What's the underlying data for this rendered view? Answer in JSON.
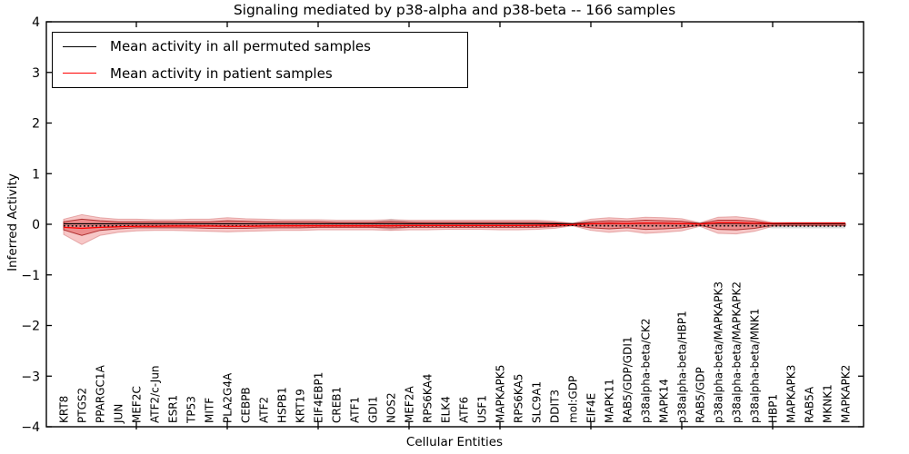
{
  "title": "Signaling mediated by p38-alpha and p38-beta -- 166 samples",
  "legend": {
    "items": [
      {
        "label": "Mean activity in all permuted samples",
        "color": "#000000",
        "style": "solid"
      },
      {
        "label": "Mean activity in patient samples",
        "color": "#ff0000",
        "style": "solid"
      }
    ],
    "position": "upper left"
  },
  "axes": {
    "xlabel": "Cellular Entities",
    "ylabel": "Inferred Activity",
    "ytick_labels": [
      "4",
      "3",
      "2",
      "1",
      "0",
      "−1",
      "−2",
      "−3",
      "−4"
    ]
  },
  "colors": {
    "patient_line": "#ff0000",
    "permuted_line": "#000000",
    "band_outer": "rgba(230,85,85,0.33)",
    "band_inner": "rgba(222,62,62,0.42)",
    "band_inner_edge": "rgba(165,28,28,0.85)",
    "band_permuted": "rgba(130,130,130,0.28)",
    "frame": "#000000"
  },
  "chart_data": {
    "type": "line",
    "title": "Signaling mediated by p38-alpha and p38-beta -- 166 samples",
    "xlabel": "Cellular Entities",
    "ylabel": "Inferred Activity",
    "ylim": [
      -4,
      4
    ],
    "yticks": [
      4,
      3,
      2,
      1,
      0,
      -1,
      -2,
      -3,
      -4
    ],
    "grid": false,
    "legend_position": "upper left",
    "categories": [
      "KRT8",
      "PTGS2",
      "PPARGC1A",
      "JUN",
      "MEF2C",
      "ATF2/c-Jun",
      "ESR1",
      "TP53",
      "MITF",
      "PLA2G4A",
      "CEBPB",
      "ATF2",
      "HSPB1",
      "KRT19",
      "EIF4EBP1",
      "CREB1",
      "ATF1",
      "GDI1",
      "NOS2",
      "MEF2A",
      "RPS6KA4",
      "ELK4",
      "ATF6",
      "USF1",
      "MAPKAPK5",
      "RPS6KA5",
      "SLC9A1",
      "DDIT3",
      "mol:GDP",
      "EIF4E",
      "MAPK11",
      "RAB5/GDP/GDI1",
      "p38alpha-beta/CK2",
      "MAPK14",
      "p38alpha-beta/HBP1",
      "RAB5/GDP",
      "p38alpha-beta/MAPKAPK3",
      "p38alpha-beta/MAPKAPK2",
      "p38alpha-beta/MNK1",
      "HBP1",
      "MAPKAPK3",
      "RAB5A",
      "MKNK1",
      "MAPKAPK2"
    ],
    "series": [
      {
        "name": "Mean activity in all permuted samples",
        "color": "#000000",
        "values": [
          0.01,
          0.01,
          0.01,
          0.01,
          0.01,
          0.01,
          0.01,
          0.01,
          0.01,
          0.01,
          0.01,
          0.01,
          0.01,
          0.01,
          0.01,
          0.01,
          0.01,
          0.01,
          0.01,
          0.01,
          0.01,
          0.01,
          0.01,
          0.01,
          0.01,
          0.01,
          0.01,
          0.01,
          0.01,
          0.015,
          0.02,
          0.015,
          0.02,
          0.02,
          0.015,
          0.01,
          0.02,
          0.02,
          0.015,
          0.01,
          0.01,
          0.01,
          0.01,
          0.01
        ]
      },
      {
        "name": "Mean activity in patient samples",
        "color": "#ff0000",
        "values": [
          -0.06,
          -0.08,
          -0.06,
          -0.05,
          -0.04,
          -0.04,
          -0.035,
          -0.035,
          -0.035,
          -0.04,
          -0.04,
          -0.035,
          -0.03,
          -0.03,
          -0.03,
          -0.03,
          -0.03,
          -0.03,
          -0.03,
          -0.025,
          -0.025,
          -0.025,
          -0.025,
          -0.025,
          -0.025,
          -0.025,
          -0.02,
          -0.015,
          -0.005,
          0.01,
          0.02,
          0.015,
          0.025,
          0.02,
          0.015,
          0.005,
          0.03,
          0.03,
          0.02,
          0.02,
          0.025,
          0.025,
          0.025,
          0.025
        ]
      }
    ],
    "extra_lines": [
      {
        "name": "permuted-dotted",
        "color": "#111111",
        "style": "dotted",
        "values": [
          -0.03,
          -0.035,
          -0.03,
          -0.03,
          -0.03,
          -0.03,
          -0.03,
          -0.03,
          -0.03,
          -0.03,
          -0.03,
          -0.03,
          -0.03,
          -0.03,
          -0.03,
          -0.03,
          -0.03,
          -0.03,
          -0.03,
          -0.03,
          -0.03,
          -0.03,
          -0.03,
          -0.03,
          -0.03,
          -0.03,
          -0.03,
          -0.025,
          -0.02,
          -0.025,
          -0.03,
          -0.03,
          -0.03,
          -0.03,
          -0.03,
          -0.025,
          -0.03,
          -0.03,
          -0.03,
          -0.03,
          -0.035,
          -0.035,
          -0.035,
          -0.035
        ]
      }
    ],
    "bands": [
      {
        "name": "patient-outer",
        "top": [
          0.1,
          0.19,
          0.13,
          0.1,
          0.1,
          0.09,
          0.09,
          0.1,
          0.1,
          0.13,
          0.11,
          0.1,
          0.09,
          0.09,
          0.09,
          0.08,
          0.08,
          0.08,
          0.09,
          0.08,
          0.08,
          0.08,
          0.08,
          0.08,
          0.08,
          0.08,
          0.08,
          0.06,
          0.02,
          0.1,
          0.13,
          0.11,
          0.14,
          0.13,
          0.11,
          0.03,
          0.14,
          0.15,
          0.11,
          0.03,
          0.02,
          0.02,
          0.02,
          0.02
        ],
        "bottom": [
          -0.2,
          -0.4,
          -0.22,
          -0.16,
          -0.13,
          -0.12,
          -0.12,
          -0.13,
          -0.14,
          -0.15,
          -0.14,
          -0.13,
          -0.12,
          -0.12,
          -0.11,
          -0.11,
          -0.11,
          -0.11,
          -0.12,
          -0.11,
          -0.11,
          -0.1,
          -0.1,
          -0.1,
          -0.11,
          -0.11,
          -0.1,
          -0.08,
          -0.03,
          -0.12,
          -0.16,
          -0.13,
          -0.18,
          -0.16,
          -0.13,
          -0.04,
          -0.18,
          -0.19,
          -0.14,
          -0.04,
          -0.03,
          -0.03,
          -0.03,
          -0.03
        ]
      },
      {
        "name": "patient-inner",
        "top": [
          0.05,
          0.1,
          0.07,
          0.05,
          0.05,
          0.05,
          0.05,
          0.05,
          0.05,
          0.07,
          0.06,
          0.05,
          0.05,
          0.05,
          0.05,
          0.04,
          0.04,
          0.04,
          0.05,
          0.04,
          0.04,
          0.04,
          0.04,
          0.04,
          0.04,
          0.04,
          0.04,
          0.03,
          0.01,
          0.05,
          0.07,
          0.06,
          0.08,
          0.07,
          0.06,
          0.015,
          0.08,
          0.08,
          0.06,
          0.015,
          0.01,
          0.01,
          0.01,
          0.01
        ],
        "bottom": [
          -0.11,
          -0.22,
          -0.12,
          -0.09,
          -0.07,
          -0.07,
          -0.07,
          -0.07,
          -0.08,
          -0.08,
          -0.08,
          -0.07,
          -0.07,
          -0.07,
          -0.06,
          -0.06,
          -0.06,
          -0.06,
          -0.07,
          -0.06,
          -0.06,
          -0.06,
          -0.06,
          -0.06,
          -0.06,
          -0.06,
          -0.06,
          -0.045,
          -0.02,
          -0.07,
          -0.09,
          -0.07,
          -0.1,
          -0.09,
          -0.07,
          -0.02,
          -0.1,
          -0.11,
          -0.08,
          -0.02,
          -0.02,
          -0.02,
          -0.02,
          -0.02
        ]
      },
      {
        "name": "permuted-gray",
        "top": [
          0.03,
          0.03,
          0.03,
          0.03,
          0.03,
          0.03,
          0.03,
          0.03,
          0.03,
          0.05,
          0.03,
          0.03,
          0.03,
          0.03,
          0.03,
          0.03,
          0.03,
          0.05,
          0.11,
          0.06,
          0.03,
          0.03,
          0.03,
          0.03,
          0.03,
          0.03,
          0.03,
          0.03,
          0.03,
          0.03,
          0.03,
          0.03,
          0.03,
          0.03,
          0.03,
          0.03,
          0.03,
          0.03,
          0.03,
          0.05,
          0.05,
          0.05,
          0.05,
          0.05
        ],
        "bottom": [
          -0.04,
          -0.04,
          -0.04,
          -0.04,
          -0.04,
          -0.04,
          -0.04,
          -0.04,
          -0.04,
          -0.06,
          -0.04,
          -0.04,
          -0.04,
          -0.04,
          -0.04,
          -0.04,
          -0.04,
          -0.06,
          -0.12,
          -0.07,
          -0.04,
          -0.04,
          -0.04,
          -0.04,
          -0.04,
          -0.04,
          -0.04,
          -0.04,
          -0.04,
          -0.04,
          -0.04,
          -0.04,
          -0.04,
          -0.04,
          -0.04,
          -0.04,
          -0.04,
          -0.04,
          -0.04,
          -0.08,
          -0.08,
          -0.08,
          -0.08,
          -0.08
        ]
      }
    ]
  }
}
